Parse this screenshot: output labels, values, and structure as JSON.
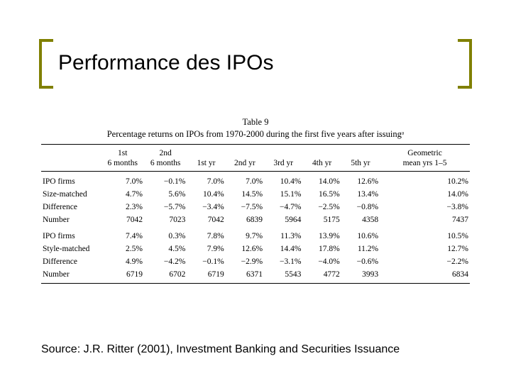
{
  "title": "Performance des IPOs",
  "table": {
    "label": "Table 9",
    "caption": "Percentage returns on IPOs from 1970-2000 during the first five years after issuingᵃ",
    "columns": [
      "",
      "1st\n6 months",
      "2nd\n6 months",
      "1st yr",
      "2nd yr",
      "3rd yr",
      "4th yr",
      "5th yr",
      "Geometric\nmean yrs 1–5"
    ],
    "groups": [
      {
        "rows": [
          [
            "IPO firms",
            "7.0%",
            "−0.1%",
            "7.0%",
            "7.0%",
            "10.4%",
            "14.0%",
            "12.6%",
            "10.2%"
          ],
          [
            "Size-matched",
            "4.7%",
            "5.6%",
            "10.4%",
            "14.5%",
            "15.1%",
            "16.5%",
            "13.4%",
            "14.0%"
          ],
          [
            "Difference",
            "2.3%",
            "−5.7%",
            "−3.4%",
            "−7.5%",
            "−4.7%",
            "−2.5%",
            "−0.8%",
            "−3.8%"
          ],
          [
            "Number",
            "7042",
            "7023",
            "7042",
            "6839",
            "5964",
            "5175",
            "4358",
            "7437"
          ]
        ]
      },
      {
        "rows": [
          [
            "IPO firms",
            "7.4%",
            "0.3%",
            "7.8%",
            "9.7%",
            "11.3%",
            "13.9%",
            "10.6%",
            "10.5%"
          ],
          [
            "Style-matched",
            "2.5%",
            "4.5%",
            "7.9%",
            "12.6%",
            "14.4%",
            "17.8%",
            "11.2%",
            "12.7%"
          ],
          [
            "Difference",
            "4.9%",
            "−4.2%",
            "−0.1%",
            "−2.9%",
            "−3.1%",
            "−4.0%",
            "−0.6%",
            "−2.2%"
          ],
          [
            "Number",
            "6719",
            "6702",
            "6719",
            "6371",
            "5543",
            "4772",
            "3993",
            "6834"
          ]
        ]
      }
    ]
  },
  "source": "Source: J.R. Ritter (2001), Investment Banking and Securities Issuance",
  "style": {
    "bracket_color": "#808000",
    "col_widths_pct": [
      14,
      10,
      10,
      9,
      9,
      9,
      9,
      9,
      21
    ]
  }
}
